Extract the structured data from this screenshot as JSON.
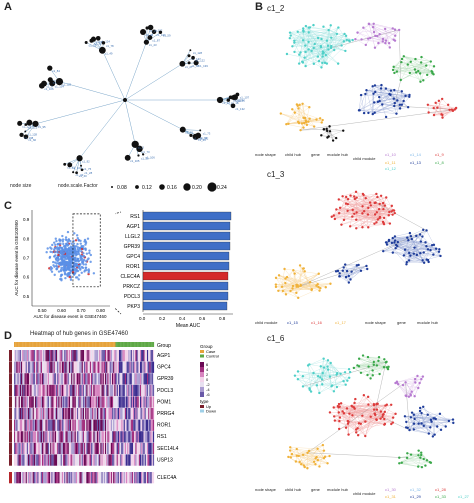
{
  "panels": {
    "A": {
      "letter": "A",
      "legend": {
        "size_label": "node size",
        "factor_label": "node.scale.Factor",
        "values": [
          "0.08",
          "0.12",
          "0.16",
          "0.20",
          "0.24"
        ]
      }
    },
    "B": {
      "letter": "B",
      "subtitles": [
        "c1_2",
        "c1_3",
        "c1_6"
      ],
      "legend_top": {
        "node_shape": "node shape",
        "child_hub": "child hub",
        "gene": "gene",
        "module_hub": "module hub",
        "child_module": "child module",
        "modules": [
          "c1_10",
          "c1_14",
          "c1_9",
          "c1_11",
          "c1_13",
          "c1_8",
          "c1_12"
        ]
      },
      "legend_mid": {
        "child_module": "child module",
        "modules": [
          "c1_15",
          "c1_16",
          "c1_17"
        ],
        "node_shape": "node shape",
        "gene": "gene",
        "module_hub": "module hub"
      },
      "legend_bot": {
        "node_shape": "node shape",
        "child_hub": "child hub",
        "gene": "gene",
        "module_hub": "module hub",
        "child_module": "child module",
        "modules": [
          "c1_30",
          "c1_32",
          "c1_28",
          "c1_31",
          "c1_29",
          "c1_33",
          "c1_27"
        ]
      }
    },
    "C": {
      "letter": "C",
      "scatter": {
        "ylabel": "AUC for disease event in GSE103950",
        "xlabel": "AUC for disease event in GSE47460",
        "xticks": [
          "0.50",
          "0.60",
          "0.70",
          "0.80"
        ],
        "yticks": [
          "0.5",
          "0.6",
          "0.7",
          "0.8",
          "0.9"
        ]
      },
      "bars": {
        "xlabel": "Mean AUC",
        "xticks": [
          "0.0",
          "0.2",
          "0.4",
          "0.6",
          "0.8"
        ]
      }
    },
    "D": {
      "letter": "D",
      "title": "Heatmap of hub genes in GSE47460",
      "group_label": "Group",
      "legend": {
        "group_title": "Group",
        "group_items": [
          "Case",
          "Control"
        ],
        "scale": [
          "6",
          "4",
          "2",
          "0",
          "-2",
          "-4",
          "-6"
        ],
        "type_title": "type",
        "type_items": [
          "Up",
          "Down"
        ]
      },
      "genes": [
        "AGP1",
        "GPC4",
        "GPR39",
        "PDCL3",
        "POM1",
        "PRRG4",
        "ROR1",
        "RS1",
        "SEC14L4",
        "USP13",
        "CLEC4A"
      ]
    }
  },
  "chart_data": [
    {
      "type": "bar",
      "categories": [
        "RS1",
        "AGP1",
        "LLGL2",
        "GPR39",
        "GPC4",
        "ROR1",
        "CLEC4A",
        "PRKCZ",
        "PDCL3",
        "PKP3"
      ],
      "values": [
        0.88,
        0.87,
        0.87,
        0.87,
        0.86,
        0.86,
        0.85,
        0.85,
        0.85,
        0.84
      ],
      "highlight": "CLEC4A",
      "xlabel": "Mean AUC",
      "xlim": [
        0,
        0.9
      ],
      "colors": {
        "bar": "#3f6fc7",
        "highlight": "#d42a2a"
      }
    },
    {
      "type": "scatter",
      "xlabel": "AUC for disease event in GSE47460",
      "ylabel": "AUC for disease event in GSE103950",
      "xlim": [
        0.45,
        0.85
      ],
      "ylim": [
        0.45,
        0.95
      ],
      "colors": {
        "main": "#5a8fe6",
        "highlight": "#d42a2a"
      }
    }
  ]
}
